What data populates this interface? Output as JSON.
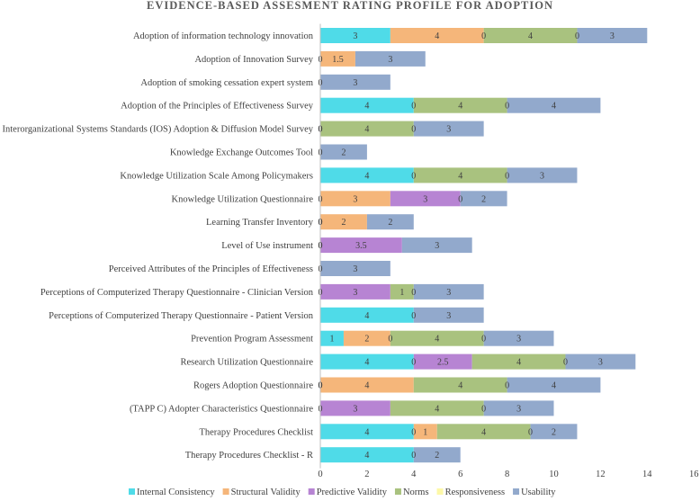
{
  "chart_data": {
    "type": "bar",
    "orientation": "horizontal",
    "stacked": true,
    "title": "EVIDENCE-BASED ASSESMENT RATING PROFILE FOR ADOPTION",
    "xlabel": "",
    "ylabel": "",
    "xlim": [
      0,
      16
    ],
    "xticks": [
      0,
      2,
      4,
      6,
      8,
      10,
      12,
      14,
      16
    ],
    "grid": false,
    "legend_position": "bottom",
    "categories": [
      "Adoption of information technology innovation",
      "Adoption of Innovation Survey",
      "Adoption of smoking cessation expert system",
      "Adoption of the Principles of Effectiveness Survey",
      "Interorganizational Systems Standards (IOS) Adoption & Diffusion Model Survey",
      "Knowledge Exchange Outcomes Tool",
      "Knowledge Utilization Scale Among Policymakers",
      "Knowledge Utilization Questionnaire",
      "Learning Transfer Inventory",
      "Level of Use instrument",
      "Perceived Attributes of the Principles of Effectiveness",
      "Perceptions of Computerized Therapy Questionnaire - Clinician Version",
      "Perceptions of Computerized Therapy Questionnaire - Patient Version",
      "Prevention Program Assessment",
      "Research Utilization Questionnaire",
      "Rogers Adoption Questionnaire",
      "(TAPP C) Adopter Characteristics Questionnaire",
      "Therapy Procedures Checklist",
      "Therapy Procedures Checklist - R"
    ],
    "series": [
      {
        "name": "Internal Consistency",
        "color": "#4fdbe8",
        "values": [
          3,
          null,
          null,
          4,
          null,
          null,
          4,
          null,
          null,
          null,
          null,
          null,
          4,
          1,
          4,
          null,
          null,
          4,
          4
        ]
      },
      {
        "name": "Structural Validity",
        "color": "#f5b67a",
        "values": [
          4,
          1.5,
          null,
          null,
          null,
          null,
          null,
          3,
          2,
          null,
          null,
          null,
          null,
          2,
          null,
          4,
          null,
          1,
          null
        ]
      },
      {
        "name": "Predictive Validity",
        "color": "#b784d3",
        "values": [
          null,
          null,
          null,
          null,
          null,
          null,
          null,
          3,
          null,
          3.5,
          null,
          3,
          null,
          null,
          2.5,
          null,
          3,
          null,
          null
        ]
      },
      {
        "name": "Norms",
        "color": "#a9c27f",
        "values": [
          4,
          null,
          null,
          4,
          4,
          null,
          4,
          null,
          null,
          null,
          null,
          1,
          null,
          4,
          4,
          4,
          4,
          4,
          null
        ]
      },
      {
        "name": "Responsiveness",
        "color": "#fdf8a8",
        "values": [
          null,
          null,
          null,
          null,
          null,
          null,
          null,
          null,
          null,
          null,
          null,
          null,
          null,
          null,
          null,
          null,
          null,
          null,
          null
        ]
      },
      {
        "name": "Usability",
        "color": "#92a9cc",
        "values": [
          3,
          3,
          3,
          4,
          3,
          2,
          3,
          2,
          2,
          3,
          3,
          3,
          3,
          3,
          3,
          4,
          3,
          2,
          2
        ]
      }
    ],
    "zero_labels": [
      [
        2,
        4
      ],
      [
        0
      ],
      [
        0
      ],
      [
        1,
        4
      ],
      [
        0,
        1,
        4
      ],
      [
        0
      ],
      [
        1,
        4
      ],
      [
        0,
        4
      ],
      [
        0,
        1
      ],
      [
        0,
        2
      ],
      [
        0
      ],
      [
        0,
        4
      ],
      [
        4
      ],
      [
        2,
        4
      ],
      [
        1,
        4
      ],
      [
        0,
        1,
        4
      ],
      [
        0,
        4
      ],
      [
        1,
        4
      ],
      [
        4
      ]
    ]
  }
}
